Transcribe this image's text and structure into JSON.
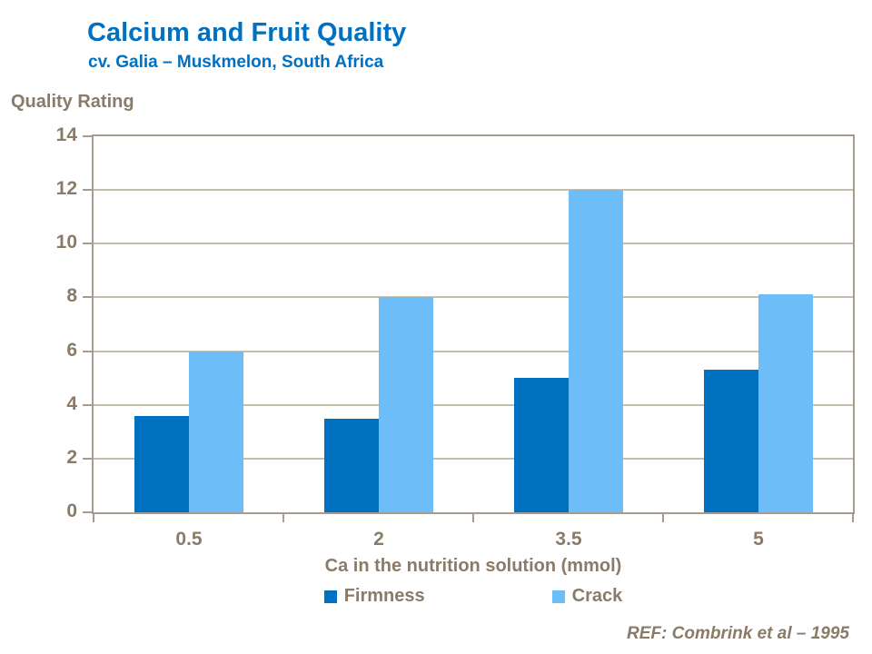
{
  "header": {
    "title": "Calcium and Fruit Quality",
    "subtitle": "cv. Galia – Muskmelon, South Africa"
  },
  "footer": {
    "ref": "REF: Combrink et al – 1995"
  },
  "colors": {
    "title_blue": "#0070C0",
    "firmness_bar": "#0070C0",
    "crack_bar": "#6CBDF8",
    "text_brown": "#8A7A68",
    "axis_line": "#A69C8E",
    "gridline": "#C4BCAF"
  },
  "chart_data": {
    "type": "bar",
    "title": "Calcium and Fruit Quality",
    "subtitle": "cv. Galia – Muskmelon, South Africa",
    "categories": [
      "0.5",
      "2",
      "3.5",
      "5"
    ],
    "series": [
      {
        "name": "Firmness",
        "color": "#0070C0",
        "values": [
          3.6,
          3.5,
          5.0,
          5.3
        ]
      },
      {
        "name": "Crack",
        "color": "#6CBDF8",
        "values": [
          6.0,
          8.0,
          12.0,
          8.1
        ]
      }
    ],
    "xlabel": "Ca in the nutrition solution (mmol)",
    "ylabel": "Quality Rating",
    "ylim": [
      0,
      14
    ],
    "ytick_step": 2,
    "grid": true,
    "legend_position": "bottom",
    "annotation": "REF: Combrink et al – 1995"
  }
}
